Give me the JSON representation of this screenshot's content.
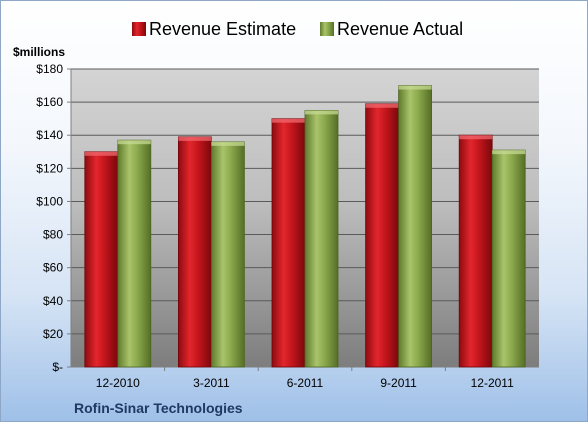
{
  "chart_data": {
    "type": "bar",
    "ylabel": "$millions",
    "footer": "Rofin-Sinar Technologies",
    "categories": [
      "12-2010",
      "3-2011",
      "6-2011",
      "9-2011",
      "12-2011"
    ],
    "series": [
      {
        "name": "Revenue Estimate",
        "color": "#c0121b",
        "values": [
          130,
          139,
          150,
          159,
          140
        ]
      },
      {
        "name": "Revenue Actual",
        "color": "#8fae4e",
        "values": [
          137,
          136,
          155,
          170,
          131
        ]
      }
    ],
    "ylim": [
      0,
      180
    ],
    "ytick_step": 20,
    "ytick_labels": [
      "$-",
      "$20",
      "$40",
      "$60",
      "$80",
      "$100",
      "$120",
      "$140",
      "$160",
      "$180"
    ],
    "grid": true,
    "legend_position": "top"
  }
}
